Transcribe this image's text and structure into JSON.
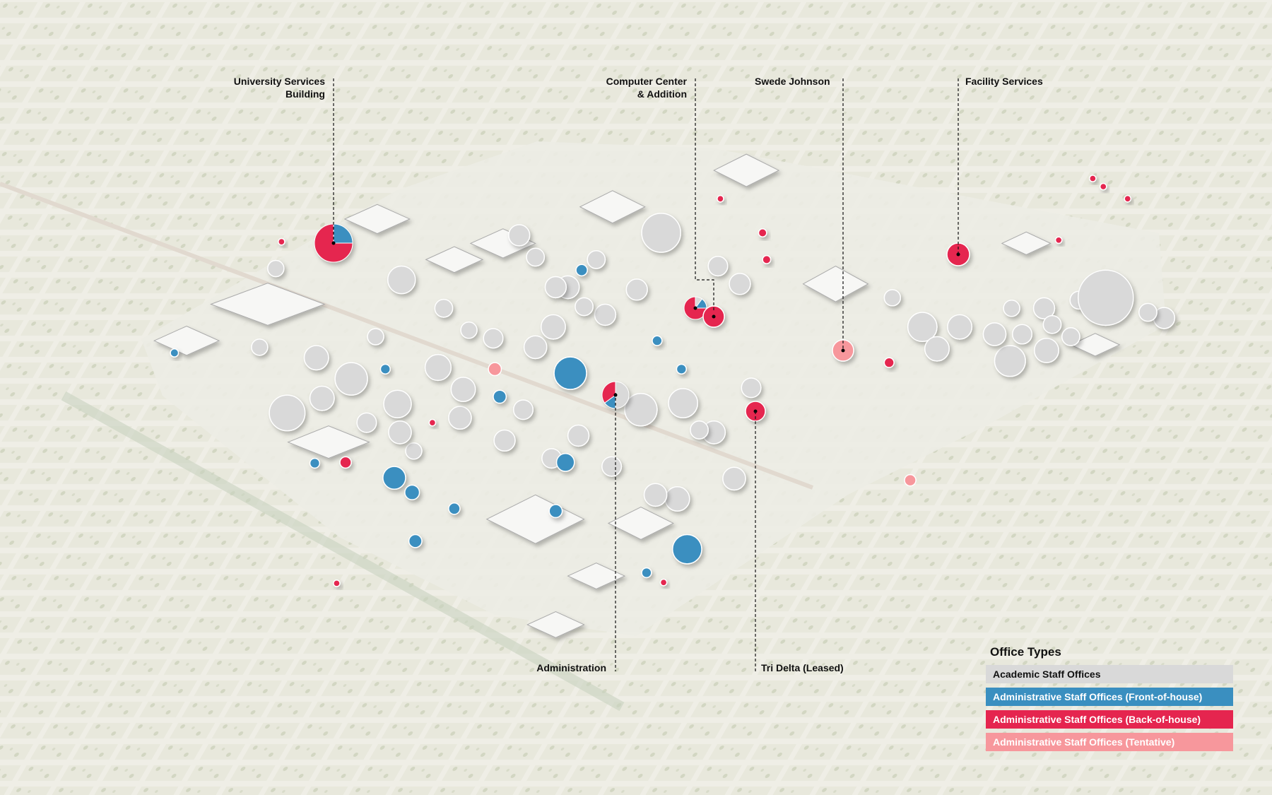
{
  "colors": {
    "academic": "#d9d9d9",
    "front_of_house": "#3a8fc0",
    "back_of_house": "#e5254f",
    "tentative": "#f7979c",
    "background": "#efeee6"
  },
  "legend": {
    "title": "Office Types",
    "items": [
      {
        "label": "Academic Staff Offices",
        "type": "academic"
      },
      {
        "label": "Administrative Staff Offices (Front-of-house)",
        "type": "front_of_house"
      },
      {
        "label": "Administrative Staff Offices (Back-of-house)",
        "type": "back_of_house"
      },
      {
        "label": "Administrative Staff Offices (Tentative)",
        "type": "tentative"
      }
    ]
  },
  "labeled_buildings": [
    {
      "name_line1": "University Services",
      "name_line2": "Building",
      "shares": {
        "academic": 0,
        "front_of_house": 0.25,
        "back_of_house": 0.75,
        "tentative": 0
      }
    },
    {
      "name_line1": "Computer Center",
      "name_line2": "& Addition",
      "shares": {
        "academic": 0.1,
        "front_of_house": 0.15,
        "back_of_house": 0.75,
        "tentative": 0
      }
    },
    {
      "name_line1": "Swede Johnson",
      "name_line2": "",
      "shares": {
        "academic": 0,
        "front_of_house": 0,
        "back_of_house": 0,
        "tentative": 1
      }
    },
    {
      "name_line1": "Facility Services",
      "name_line2": "",
      "shares": {
        "academic": 0,
        "front_of_house": 0,
        "back_of_house": 1,
        "tentative": 0
      }
    },
    {
      "name_line1": "Administration",
      "name_line2": "",
      "shares": {
        "academic": 0.5,
        "front_of_house": 0.15,
        "back_of_house": 0.35,
        "tentative": 0
      }
    },
    {
      "name_line1": "Tri Delta (Leased)",
      "name_line2": "",
      "shares": {
        "academic": 0,
        "front_of_house": 0,
        "back_of_house": 1,
        "tentative": 0
      }
    }
  ]
}
